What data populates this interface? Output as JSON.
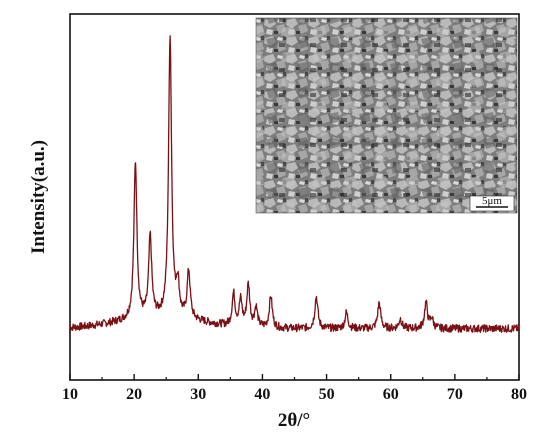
{
  "chart_data": {
    "type": "line",
    "xlabel": "2θ/°",
    "ylabel": "Intensity(a.u.)",
    "xlim": [
      10,
      80
    ],
    "x_ticks": [
      10,
      20,
      30,
      40,
      50,
      60,
      70,
      80
    ],
    "y_ticks_shown": false,
    "grid": false,
    "legend": "none",
    "line_color": "#7a0f14",
    "baseline": 2.0,
    "peaks": [
      {
        "x": 20.2,
        "y": 49
      },
      {
        "x": 22.5,
        "y": 25
      },
      {
        "x": 25.6,
        "y": 88
      },
      {
        "x": 26.8,
        "y": 10
      },
      {
        "x": 28.5,
        "y": 15
      },
      {
        "x": 35.5,
        "y": 10
      },
      {
        "x": 36.6,
        "y": 8
      },
      {
        "x": 37.8,
        "y": 13
      },
      {
        "x": 39.0,
        "y": 6
      },
      {
        "x": 41.3,
        "y": 10
      },
      {
        "x": 48.4,
        "y": 10
      },
      {
        "x": 53.1,
        "y": 5
      },
      {
        "x": 58.2,
        "y": 8
      },
      {
        "x": 61.5,
        "y": 3
      },
      {
        "x": 65.5,
        "y": 8
      },
      {
        "x": 66.4,
        "y": 3
      }
    ],
    "inset": {
      "kind": "SEM micrograph",
      "scale_bar_label": "5μm"
    }
  }
}
